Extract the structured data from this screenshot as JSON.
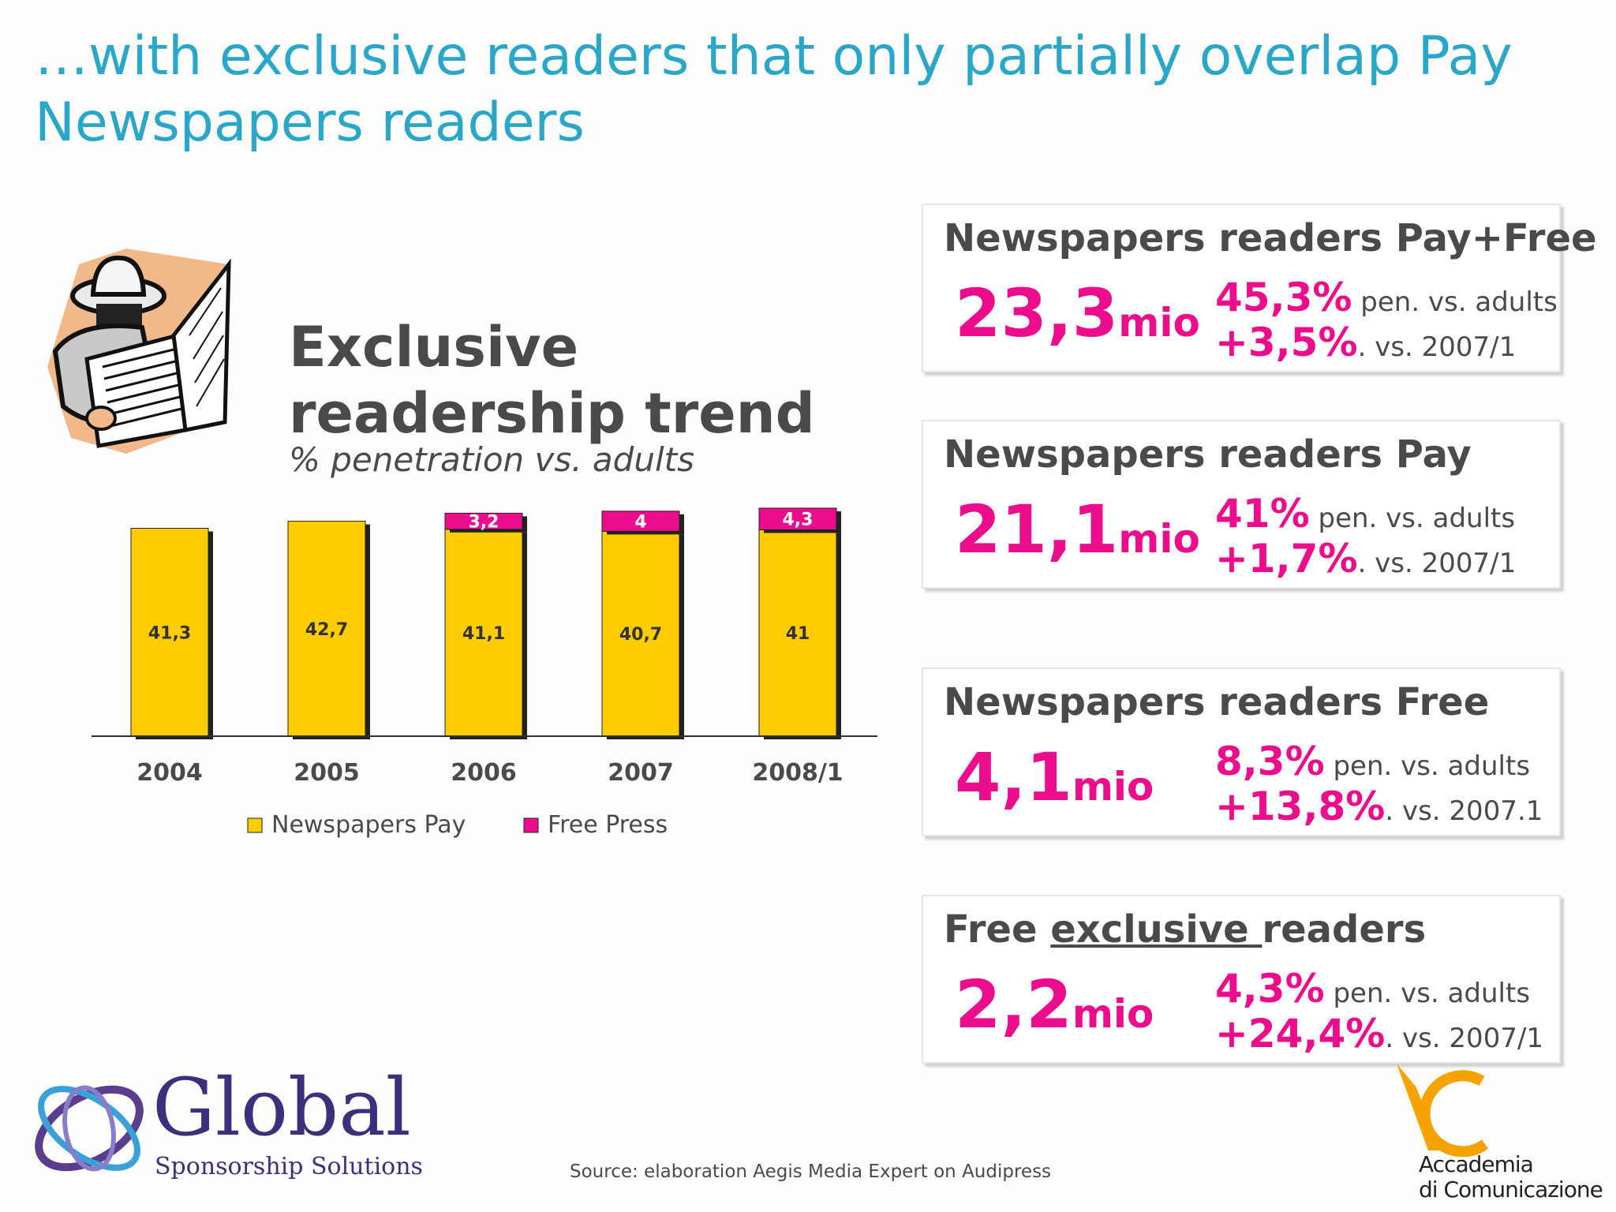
{
  "slide_title": "…with exclusive readers that only partially overlap Pay Newspapers readers",
  "chart_heading": "Exclusive readership trend",
  "chart_subheading": "% penetration vs. adults",
  "chart_data": {
    "type": "bar",
    "stacked": true,
    "categories": [
      "2004",
      "2005",
      "2006",
      "2007",
      "2008/1"
    ],
    "series": [
      {
        "name": "Newspapers Pay",
        "color": "#ffcc00",
        "values": [
          41.3,
          42.7,
          41.1,
          40.7,
          41
        ],
        "labels": [
          "41,3",
          "42,7",
          "41,1",
          "40,7",
          "41"
        ]
      },
      {
        "name": "Free Press",
        "color": "#ec0d8c",
        "values": [
          0,
          0,
          3.2,
          4,
          4.3
        ],
        "labels": [
          "",
          "",
          "3,2",
          "4",
          "4,3"
        ]
      }
    ],
    "legend_position": "bottom",
    "grid": false
  },
  "panels": [
    {
      "title": "Newspapers readers Pay+Free",
      "title_underline": "",
      "title_after": "",
      "big_number": "23,3",
      "unit": "mio",
      "pen_value": "45,3%",
      "pen_text": " pen. vs. adults",
      "delta_value": "+3,5%",
      "delta_text": ". vs. 2007/1"
    },
    {
      "title": "Newspapers readers Pay",
      "title_underline": "",
      "title_after": "",
      "big_number": "21,1",
      "unit": "mio",
      "pen_value": "41%",
      "pen_text": " pen. vs. adults",
      "delta_value": "+1,7%",
      "delta_text": ". vs. 2007/1"
    },
    {
      "title": "Newspapers readers Free",
      "title_underline": "",
      "title_after": "",
      "big_number": "4,1",
      "unit": "mio",
      "pen_value": "8,3%",
      "pen_text": " pen. vs. adults",
      "delta_value": "+13,8%",
      "delta_text": ". vs. 2007.1"
    },
    {
      "title": "Free ",
      "title_underline": "exclusive ",
      "title_after": "readers",
      "big_number": "2,2",
      "unit": "mio",
      "pen_value": "4,3%",
      "pen_text": " pen. vs. adults",
      "delta_value": "+24,4%",
      "delta_text": ". vs. 2007/1"
    }
  ],
  "source": "Source: elaboration Aegis Media Expert on Audipress",
  "logo_global": {
    "name": "Global",
    "tagline": "Sponsorship Solutions"
  },
  "logo_ac": {
    "line1": "Accademia",
    "line2": "di Comunicazione",
    "color": "#f5a300"
  },
  "colors": {
    "title": "#2aa6c9",
    "accent": "#ec0d8c",
    "pay": "#ffcc00"
  }
}
